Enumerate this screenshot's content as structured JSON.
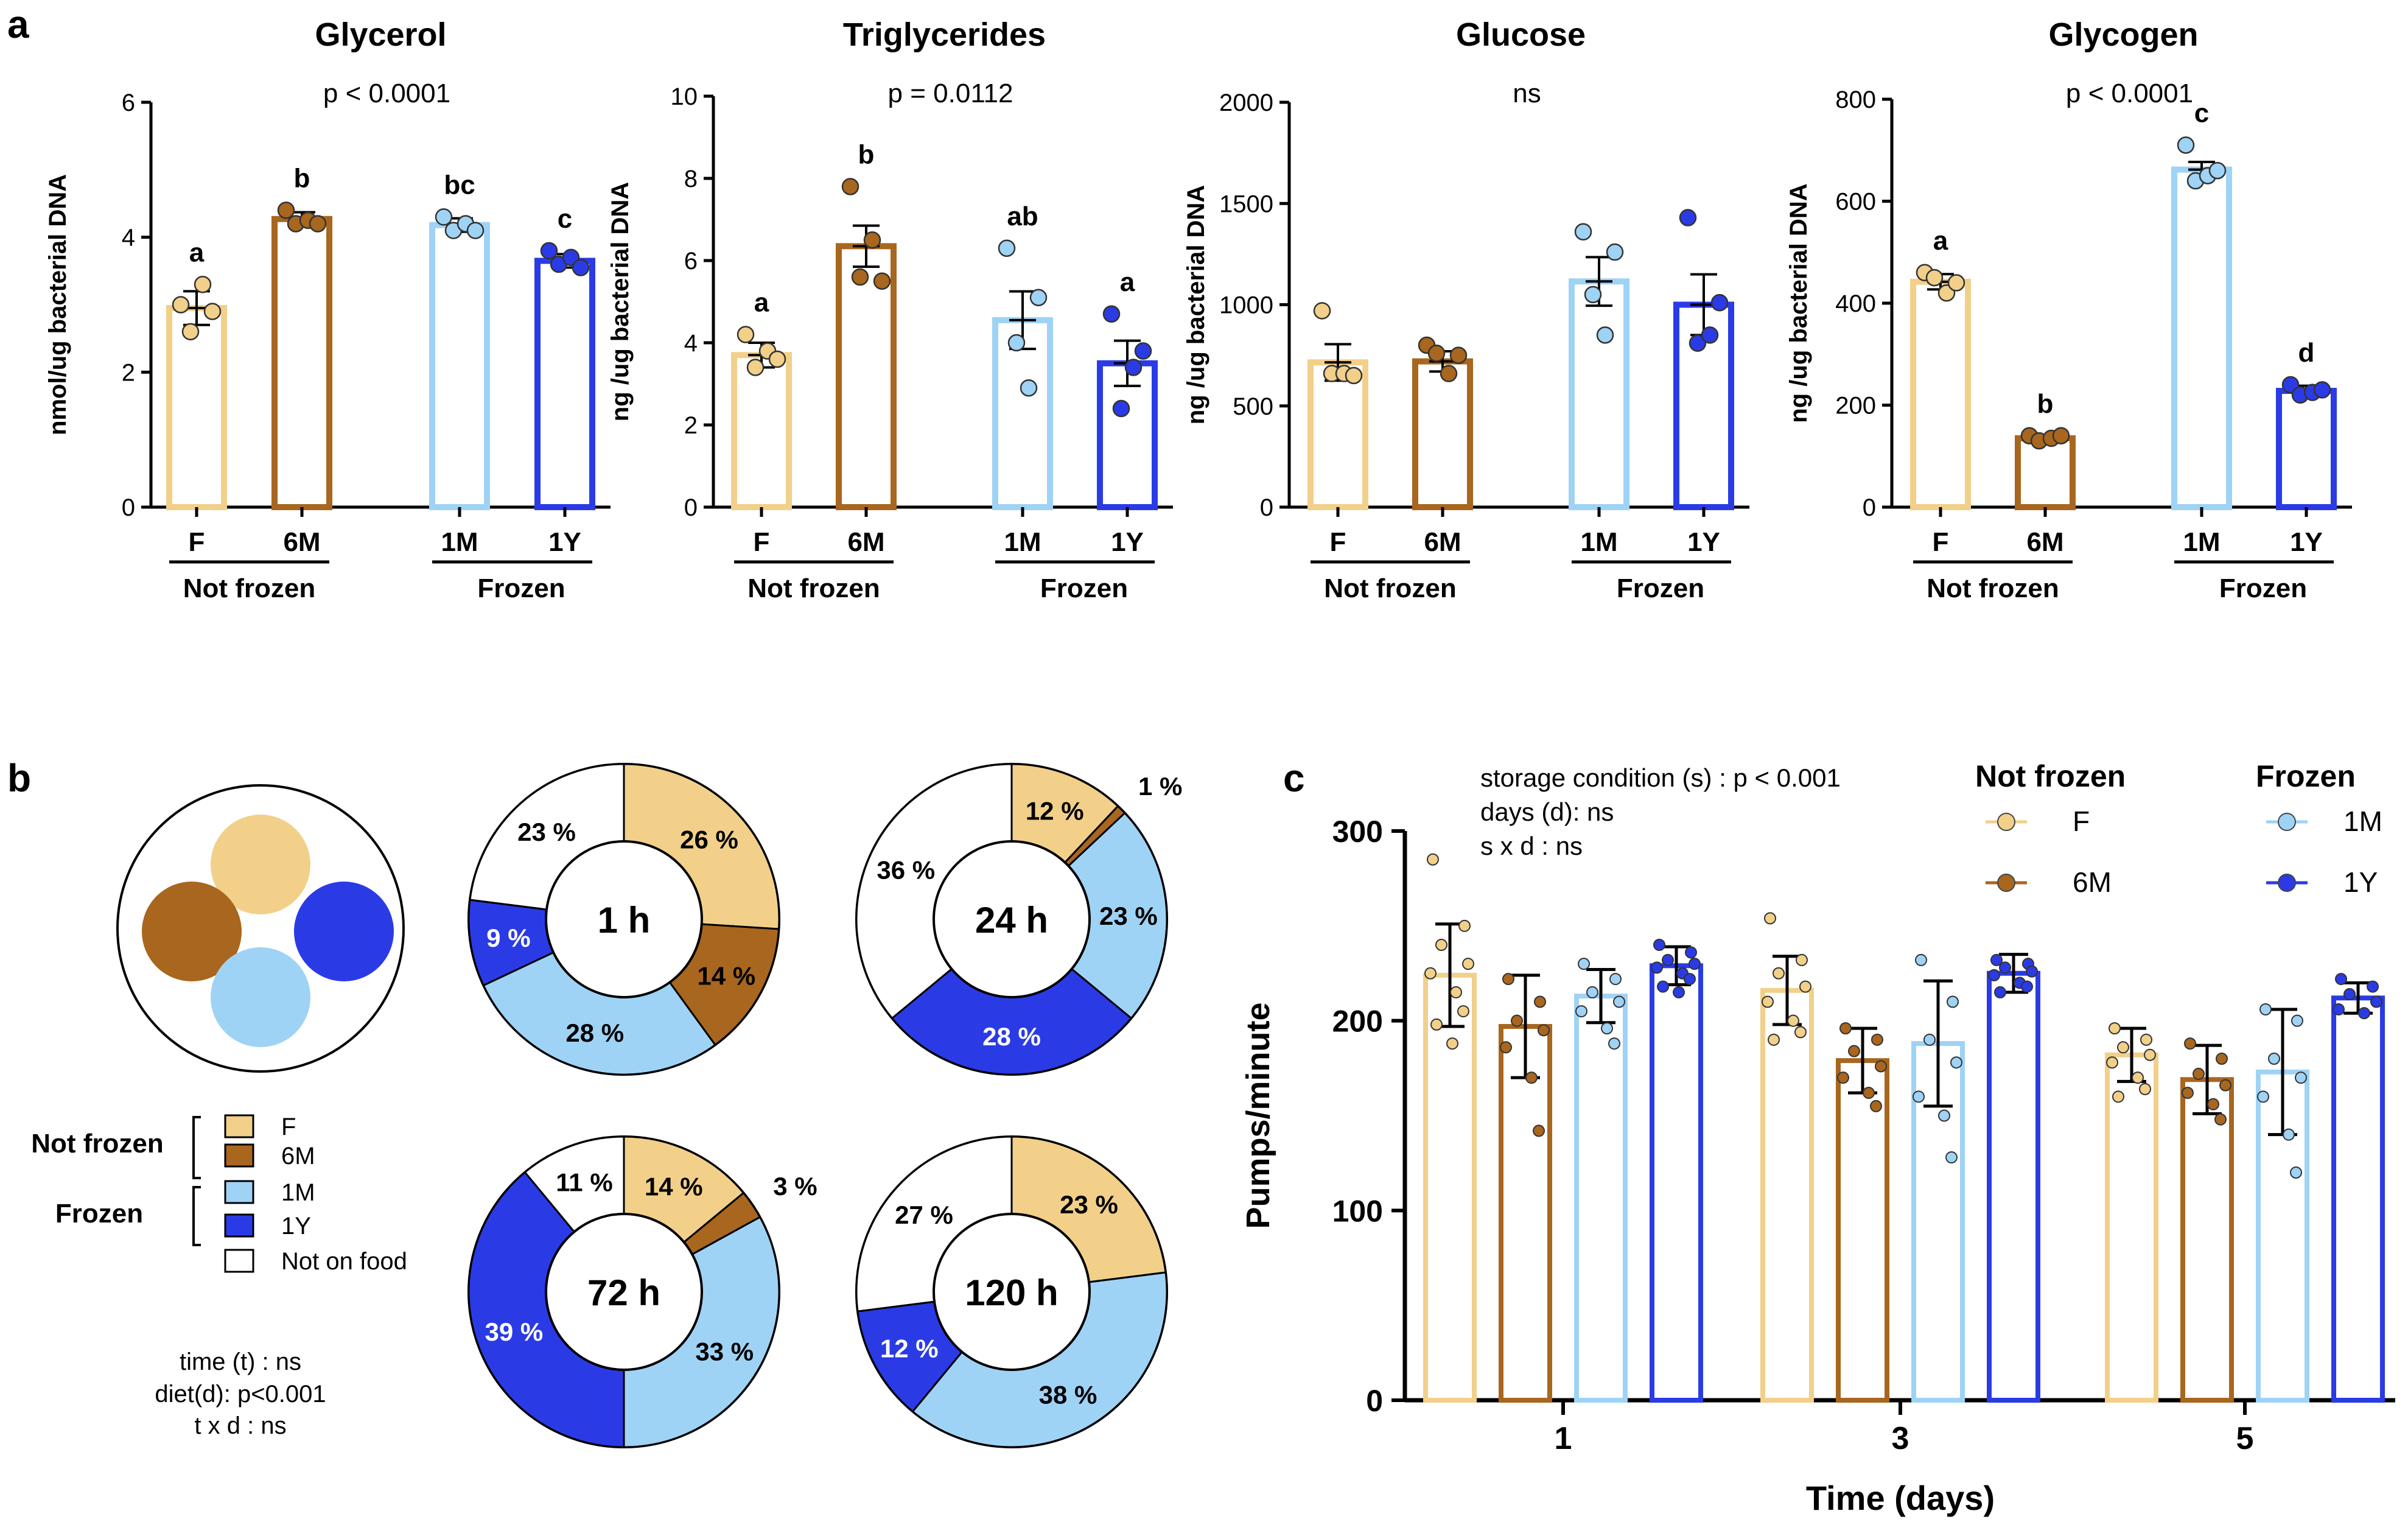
{
  "panel_labels": [
    "a",
    "b",
    "c"
  ],
  "colors": {
    "F": "#f2d08a",
    "6M": "#a8661e",
    "1M": "#9fd3f5",
    "1Y": "#2a3be6",
    "none": "#ffffff",
    "text": "#000000"
  },
  "group_names": {
    "not_frozen": "Not frozen",
    "frozen": "Frozen"
  },
  "chart_data": [
    {
      "type": "bar",
      "panel": "a",
      "title": "Glycerol",
      "stat": "p < 0.0001",
      "ylabel": "nmol/ug bacterial DNA",
      "ylim": [
        0,
        6
      ],
      "yticks": [
        "0",
        "2",
        "4",
        "6"
      ],
      "categories": [
        "F",
        "6M",
        "1M",
        "1Y"
      ],
      "groups": [
        "Not frozen",
        "Frozen"
      ],
      "values": [
        2.95,
        4.27,
        4.18,
        3.65
      ],
      "sem": [
        0.25,
        0.1,
        0.1,
        0.1
      ],
      "points": [
        [
          3.0,
          2.6,
          3.3,
          2.9
        ],
        [
          4.4,
          4.2,
          4.25,
          4.2
        ],
        [
          4.3,
          4.1,
          4.2,
          4.1
        ],
        [
          3.8,
          3.6,
          3.7,
          3.55
        ]
      ],
      "letters": [
        "a",
        "b",
        "bc",
        "c"
      ]
    },
    {
      "type": "bar",
      "panel": "a",
      "title": "Triglycerides",
      "stat": "p = 0.0112",
      "ylabel": "ng /ug bacterial DNA",
      "ylim": [
        0,
        10
      ],
      "yticks": [
        "0",
        "2",
        "4",
        "6",
        "8",
        "10"
      ],
      "categories": [
        "F",
        "6M",
        "1M",
        "1Y"
      ],
      "groups": [
        "Not frozen",
        "Frozen"
      ],
      "values": [
        3.7,
        6.35,
        4.55,
        3.5
      ],
      "sem": [
        0.3,
        0.5,
        0.7,
        0.55
      ],
      "points": [
        [
          4.2,
          3.4,
          3.8,
          3.6
        ],
        [
          7.8,
          5.6,
          6.5,
          5.5
        ],
        [
          6.3,
          4.0,
          2.9,
          5.1
        ],
        [
          4.7,
          2.4,
          3.4,
          3.8
        ]
      ],
      "letters": [
        "a",
        "b",
        "ab",
        "a"
      ]
    },
    {
      "type": "bar",
      "panel": "a",
      "title": "Glucose",
      "stat": "ns",
      "ylabel": "ng /ug bacterial DNA",
      "ylim": [
        0,
        2000
      ],
      "yticks": [
        "0",
        "500",
        "1000",
        "1500",
        "2000"
      ],
      "categories": [
        "F",
        "6M",
        "1M",
        "1Y"
      ],
      "groups": [
        "Not frozen",
        "Frozen"
      ],
      "values": [
        715,
        720,
        1115,
        1000
      ],
      "sem": [
        90,
        50,
        120,
        150
      ],
      "points": [
        [
          970,
          660,
          660,
          650
        ],
        [
          800,
          760,
          660,
          750
        ],
        [
          1360,
          1050,
          850,
          1260
        ],
        [
          1430,
          810,
          850,
          1010
        ]
      ],
      "letters": []
    },
    {
      "type": "bar",
      "panel": "a",
      "title": "Glycogen",
      "stat": "p < 0.0001",
      "ylabel": "ng /ug bacterial DNA",
      "ylim": [
        0,
        800
      ],
      "yticks": [
        "0",
        "200",
        "400",
        "600",
        "800"
      ],
      "categories": [
        "F",
        "6M",
        "1M",
        "1Y"
      ],
      "groups": [
        "Not frozen",
        "Frozen"
      ],
      "values": [
        442,
        135,
        662,
        228
      ],
      "sem": [
        15,
        5,
        15,
        10
      ],
      "points": [
        [
          460,
          450,
          420,
          440
        ],
        [
          140,
          130,
          135,
          140
        ],
        [
          710,
          640,
          650,
          660
        ],
        [
          240,
          220,
          225,
          230
        ]
      ],
      "letters": [
        "a",
        "b",
        "c",
        "d"
      ]
    },
    {
      "type": "pie",
      "panel": "b",
      "center_label": "1 h",
      "slices": [
        {
          "key": "F",
          "value": 26,
          "label": "26 %"
        },
        {
          "key": "6M",
          "value": 14,
          "label": "14 %"
        },
        {
          "key": "1M",
          "value": 28,
          "label": "28 %"
        },
        {
          "key": "1Y",
          "value": 9,
          "label": "9 %"
        },
        {
          "key": "none",
          "value": 23,
          "label": "23 %"
        }
      ]
    },
    {
      "type": "pie",
      "panel": "b",
      "center_label": "24 h",
      "slices": [
        {
          "key": "F",
          "value": 12,
          "label": "12 %"
        },
        {
          "key": "6M",
          "value": 1,
          "label": "1 %"
        },
        {
          "key": "1M",
          "value": 23,
          "label": "23 %"
        },
        {
          "key": "1Y",
          "value": 28,
          "label": "28 %"
        },
        {
          "key": "none",
          "value": 36,
          "label": "36 %"
        }
      ]
    },
    {
      "type": "pie",
      "panel": "b",
      "center_label": "72 h",
      "slices": [
        {
          "key": "F",
          "value": 14,
          "label": "14 %"
        },
        {
          "key": "6M",
          "value": 3,
          "label": "3 %"
        },
        {
          "key": "1M",
          "value": 33,
          "label": "33 %"
        },
        {
          "key": "1Y",
          "value": 39,
          "label": "39 %"
        },
        {
          "key": "none",
          "value": 11,
          "label": "11 %"
        }
      ]
    },
    {
      "type": "pie",
      "panel": "b",
      "center_label": "120 h",
      "slices": [
        {
          "key": "F",
          "value": 23,
          "label": "23 %"
        },
        {
          "key": "6M",
          "value": 0,
          "label": ""
        },
        {
          "key": "1M",
          "value": 38,
          "label": "38 %"
        },
        {
          "key": "1Y",
          "value": 12,
          "label": "12 %"
        },
        {
          "key": "none",
          "value": 27,
          "label": "27 %"
        }
      ]
    },
    {
      "type": "bar",
      "panel": "c",
      "xlabel": "Time (days)",
      "ylabel": "Pumps/minute",
      "ylim": [
        0,
        300
      ],
      "yticks": [
        "0",
        "100",
        "200",
        "300"
      ],
      "categories": [
        "1",
        "3",
        "5"
      ],
      "stats_text": [
        "storage condition (s) : p < 0.001",
        "days (d): ns",
        "s x d : ns"
      ],
      "legend": {
        "not_frozen_title": "Not frozen",
        "frozen_title": "Frozen"
      },
      "series": [
        {
          "name": "F",
          "values": [
            224,
            216,
            182
          ],
          "sd": [
            27,
            18,
            14
          ],
          "points": [
            [
              285,
              250,
              240,
              230,
              225,
              215,
              205,
              198,
              188
            ],
            [
              254,
              232,
              225,
              218,
              210,
              200,
              194,
              190
            ],
            [
              196,
              190,
              186,
              182,
              178,
              170,
              164,
              160
            ]
          ]
        },
        {
          "name": "6M",
          "values": [
            197,
            179,
            169
          ],
          "sd": [
            27,
            17,
            18
          ],
          "points": [
            [
              222,
              210,
              200,
              195,
              186,
              170,
              142
            ],
            [
              196,
              190,
              184,
              176,
              170,
              162,
              155
            ],
            [
              188,
              180,
              172,
              166,
              162,
              156,
              148
            ]
          ]
        },
        {
          "name": "1M",
          "values": [
            213,
            188,
            173
          ],
          "sd": [
            14,
            33,
            33
          ],
          "points": [
            [
              230,
              222,
              215,
              210,
              205,
              196,
              188
            ],
            [
              232,
              210,
              190,
              178,
              160,
              150,
              128
            ],
            [
              206,
              200,
              180,
              170,
              160,
              140,
              120
            ]
          ]
        },
        {
          "name": "1Y",
          "values": [
            229,
            225,
            212
          ],
          "sd": [
            10,
            10,
            8
          ],
          "points": [
            [
              240,
              236,
              232,
              230,
              228,
              225,
              222,
              218,
              215
            ],
            [
              232,
              230,
              228,
              226,
              224,
              220,
              218,
              215
            ],
            [
              222,
              218,
              214,
              210,
              206,
              204
            ]
          ]
        }
      ]
    }
  ],
  "legend_b": {
    "not_frozen_label": "Not frozen",
    "frozen_label": "Frozen",
    "items": [
      {
        "key": "F",
        "label": "F"
      },
      {
        "key": "6M",
        "label": "6M"
      },
      {
        "key": "1M",
        "label": "1M"
      },
      {
        "key": "1Y",
        "label": "1Y"
      },
      {
        "key": "none",
        "label": "Not on food"
      }
    ],
    "stats": [
      "time (t) : ns",
      "diet(d): p<0.001",
      "t x d : ns"
    ]
  }
}
